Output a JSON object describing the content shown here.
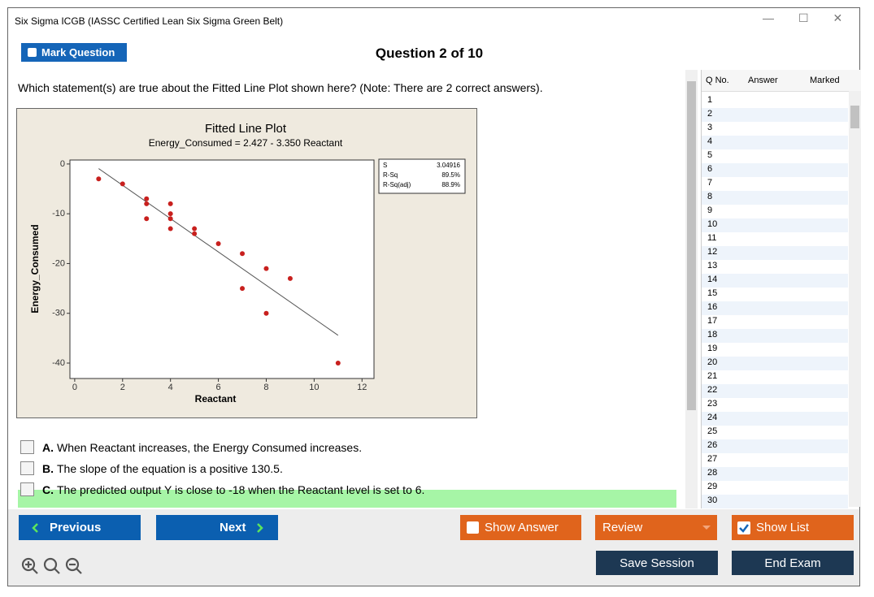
{
  "window": {
    "title": "Six Sigma ICGB (IASSC Certified Lean Six Sigma Green Belt)"
  },
  "toolbar": {
    "mark_button": "Mark Question",
    "question_counter": "Question 2 of 10"
  },
  "question": {
    "text": "Which statement(s) are true about the Fitted Line Plot shown here? (Note: There are 2 correct answers).",
    "options": [
      {
        "letter": "A.",
        "text": "When Reactant increases, the Energy Consumed increases."
      },
      {
        "letter": "B.",
        "text": "The slope of the equation is a positive 130.5."
      },
      {
        "letter": "C.",
        "text": "The predicted output Y is close to -18 when the Reactant level is set to 6."
      }
    ]
  },
  "chart_data": {
    "type": "scatter",
    "title": "Fitted Line Plot",
    "subtitle": "Energy_Consumed = 2.427 - 3.350 Reactant",
    "x_label": "Reactant",
    "y_label": "Energy_Consumed",
    "color": "#c8201e",
    "x": [
      1,
      2,
      3,
      3,
      3,
      4,
      4,
      4,
      4,
      5,
      5,
      6,
      7,
      7,
      8,
      8,
      9,
      11
    ],
    "values": [
      -3,
      -4,
      -7,
      -8,
      -11,
      -8,
      -10,
      -11,
      -13,
      -13,
      -14,
      -16,
      -18,
      -25,
      -21,
      -30,
      -23,
      -40
    ],
    "fit": {
      "intercept": 2.427,
      "slope": -3.35,
      "color": "#555555"
    },
    "xlim": [
      -0.2,
      12.5
    ],
    "ylim": [
      -43.1,
      0.8
    ],
    "xticks": [
      0,
      2,
      4,
      6,
      8,
      10,
      12
    ],
    "yticks": [
      0,
      -10,
      -20,
      -30,
      -40
    ],
    "stats": [
      {
        "label": "S",
        "value": "3.04916"
      },
      {
        "label": "R-Sq",
        "value": "89.5%"
      },
      {
        "label": "R-Sq(adj)",
        "value": "88.9%"
      }
    ]
  },
  "question_list": {
    "headers": [
      "Q No.",
      "Answer",
      "Marked"
    ],
    "numbers": [
      1,
      2,
      3,
      4,
      5,
      6,
      7,
      8,
      9,
      10,
      11,
      12,
      13,
      14,
      15,
      16,
      17,
      18,
      19,
      20,
      21,
      22,
      23,
      24,
      25,
      26,
      27,
      28,
      29,
      30
    ]
  },
  "buttons": {
    "previous": "Previous",
    "next": "Next",
    "show_answer": "Show Answer",
    "review": "Review",
    "show_list": "Show List",
    "save_session": "Save Session",
    "end_exam": "End Exam"
  }
}
